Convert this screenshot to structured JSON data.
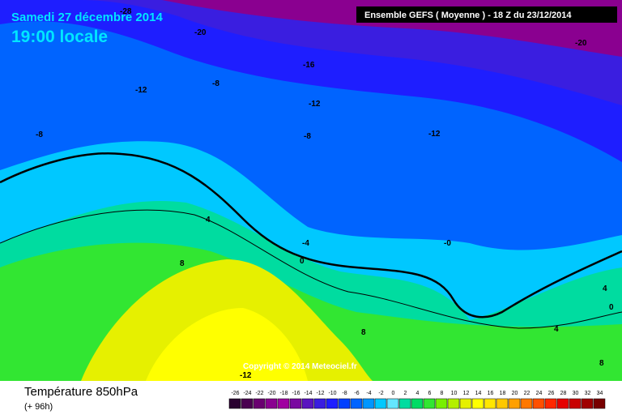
{
  "header": {
    "date": "Samedi 27 décembre 2014",
    "time": "19:00 locale",
    "model": "Ensemble GEFS  ( Moyenne )  -  18 Z du 23/12/2014"
  },
  "copyright": "Copyright © 2014 Meteociel.fr",
  "footer": {
    "title": "Température 850hPa",
    "lead": "(+ 96h)"
  },
  "contour_labels": [
    "-28",
    "-20",
    "-20",
    "-16",
    "-12",
    "-8",
    "-12",
    "-8",
    "-8",
    "-12",
    "4",
    "-4",
    "8",
    "0",
    "-0",
    "4",
    "0",
    "4",
    "8",
    "8",
    "-12"
  ],
  "legend": {
    "values": [
      "-26",
      "-24",
      "-22",
      "-20",
      "-18",
      "-16",
      "-14",
      "-12",
      "-10",
      "-8",
      "-6",
      "-4",
      "-2",
      "0",
      "2",
      "4",
      "6",
      "8",
      "10",
      "12",
      "14",
      "16",
      "18",
      "20",
      "22",
      "24",
      "26",
      "28",
      "30",
      "32",
      "34"
    ],
    "colors": [
      "#2a0030",
      "#4a0050",
      "#6a0070",
      "#8a0090",
      "#a000a0",
      "#7a0aa0",
      "#5a14c0",
      "#3a1ee0",
      "#1e1eff",
      "#0040ff",
      "#0064ff",
      "#0096ff",
      "#00c8ff",
      "#64e6ff",
      "#00dca0",
      "#00dc64",
      "#32e632",
      "#78f000",
      "#b4f000",
      "#e6f000",
      "#ffff00",
      "#ffe600",
      "#ffc800",
      "#ffa000",
      "#ff7800",
      "#ff5000",
      "#ff2800",
      "#e60000",
      "#c80000",
      "#a00000",
      "#780000"
    ]
  }
}
